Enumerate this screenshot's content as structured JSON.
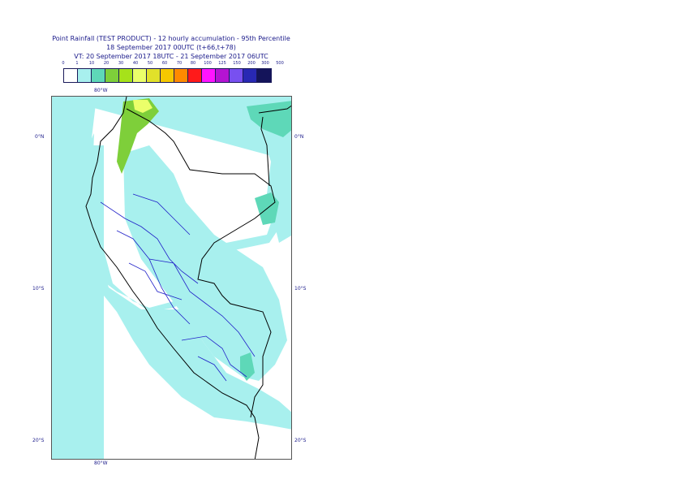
{
  "header": {
    "title_line1": "Point Rainfall (TEST PRODUCT) - 12 hourly accumulation - 95th Percentile",
    "title_line2": "18 September 2017 00UTC (t+66,t+78)",
    "title_line3": "VT: 20 September 2017 18UTC - 21 September 2017 06UTC"
  },
  "legend": {
    "thresholds": [
      "0",
      "1",
      "10",
      "20",
      "30",
      "40",
      "50",
      "60",
      "70",
      "80",
      "100",
      "125",
      "150",
      "200",
      "300",
      "500"
    ],
    "colors": [
      "#ffffff",
      "#a8f0ee",
      "#5ed8b8",
      "#7ecf3a",
      "#a6e21a",
      "#ebff6a",
      "#e1e12a",
      "#f5c800",
      "#ff8a00",
      "#ff1a1a",
      "#ff14ff",
      "#b414d2",
      "#7850f0",
      "#2828b4",
      "#14145a"
    ]
  },
  "map": {
    "lon_labels": [
      "80°W",
      "80°W"
    ],
    "lat_labels": {
      "left": [
        "0°N",
        "10°S",
        "20°S"
      ],
      "right": [
        "0°N",
        "10°S",
        "20°S"
      ]
    }
  }
}
